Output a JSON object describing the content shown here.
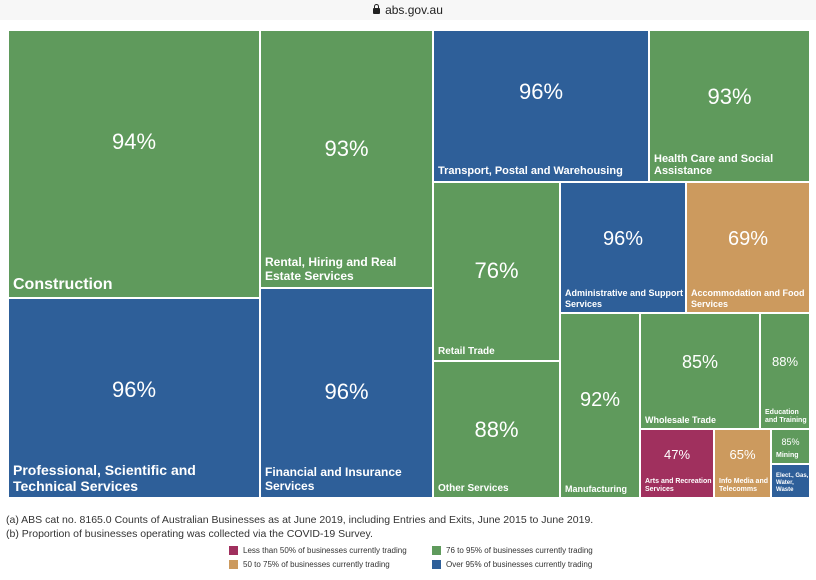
{
  "browser": {
    "url": "abs.gov.au"
  },
  "colors": {
    "lt50": "#a0305e",
    "50to75": "#cc9a5e",
    "76to95": "#5f9a5c",
    "over95": "#2e5f99"
  },
  "chart_data": {
    "type": "treemap",
    "cells": [
      {
        "label": "Construction",
        "value": "94%",
        "band": "76to95"
      },
      {
        "label": "Professional, Scientific and Technical Services",
        "value": "96%",
        "band": "over95"
      },
      {
        "label": "Rental, Hiring and Real Estate Services",
        "value": "93%",
        "band": "76to95"
      },
      {
        "label": "Financial and Insurance Services",
        "value": "96%",
        "band": "over95"
      },
      {
        "label": "Transport, Postal and Warehousing",
        "value": "96%",
        "band": "over95"
      },
      {
        "label": "Health Care and Social Assistance",
        "value": "93%",
        "band": "76to95"
      },
      {
        "label": "Retail Trade",
        "value": "76%",
        "band": "76to95"
      },
      {
        "label": "Administrative and Support Services",
        "value": "96%",
        "band": "over95"
      },
      {
        "label": "Accommodation and Food Services",
        "value": "69%",
        "band": "50to75"
      },
      {
        "label": "Other Services",
        "value": "88%",
        "band": "76to95"
      },
      {
        "label": "Manufacturing",
        "value": "92%",
        "band": "76to95"
      },
      {
        "label": "Wholesale Trade",
        "value": "85%",
        "band": "76to95"
      },
      {
        "label": "Education and Training",
        "value": "88%",
        "band": "76to95"
      },
      {
        "label": "Arts and Recreation Services",
        "value": "47%",
        "band": "lt50"
      },
      {
        "label": "Info Media and Telecomms",
        "value": "65%",
        "band": "50to75"
      },
      {
        "label": "Mining",
        "value": "85%",
        "band": "76to95"
      },
      {
        "label": "Elect., Gas, Water, Waste",
        "value": "",
        "band": "over95"
      }
    ],
    "legend": [
      {
        "band": "lt50",
        "label": "Less than 50% of businesses currently trading"
      },
      {
        "band": "50to75",
        "label": "50 to 75% of businesses currently trading"
      },
      {
        "band": "76to95",
        "label": "76 to 95% of businesses currently trading"
      },
      {
        "band": "over95",
        "label": "Over 95% of businesses currently trading"
      }
    ]
  },
  "notes": [
    "(a) ABS cat no. 8165.0 Counts of Australian Businesses as at June 2019, including Entries and Exits, June 2015 to June 2019.",
    "(b) Proportion of businesses operating was collected via the COVID-19 Survey."
  ]
}
